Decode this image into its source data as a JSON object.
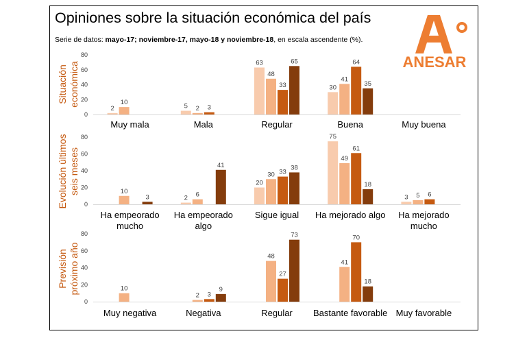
{
  "title": "Opiniones sobre la situación económica del país",
  "subtitle": {
    "prefix": "Serie de datos: ",
    "bold": "mayo-17; noviembre-17, mayo-18 y noviembre-18",
    "suffix": ", en escala ascendente (%)."
  },
  "logo": {
    "text": "ANESAR",
    "letter": "A",
    "color": "#ed7d31"
  },
  "colors": [
    "#f8cbad",
    "#f4b183",
    "#c55a11",
    "#843c0c"
  ],
  "chart_data": [
    {
      "type": "bar",
      "ylabel_lines": [
        "Situación",
        "económica"
      ],
      "ylim": [
        0,
        80
      ],
      "yticks": [
        0,
        20,
        40,
        60,
        80
      ],
      "categories": [
        [
          "Muy mala"
        ],
        [
          "Mala"
        ],
        [
          "Regular"
        ],
        [
          "Buena"
        ],
        [
          "Muy buena"
        ]
      ],
      "values": [
        [
          2,
          10,
          null,
          null
        ],
        [
          5,
          2,
          3,
          null
        ],
        [
          63,
          48,
          33,
          65
        ],
        [
          30,
          41,
          64,
          35
        ],
        [
          null,
          null,
          null,
          null
        ]
      ]
    },
    {
      "type": "bar",
      "ylabel_lines": [
        "Evolución últimos",
        "seis meses"
      ],
      "ylim": [
        0,
        80
      ],
      "yticks": [
        0,
        20,
        40,
        60,
        80
      ],
      "categories": [
        [
          "Ha empeorado",
          "mucho"
        ],
        [
          "Ha empeorado",
          "algo"
        ],
        [
          "Sigue igual"
        ],
        [
          "Ha mejorado algo"
        ],
        [
          "Ha mejorado",
          "mucho"
        ]
      ],
      "values": [
        [
          null,
          10,
          null,
          3
        ],
        [
          2,
          6,
          null,
          41
        ],
        [
          20,
          30,
          33,
          38
        ],
        [
          75,
          49,
          61,
          18
        ],
        [
          3,
          5,
          6,
          null
        ]
      ]
    },
    {
      "type": "bar",
      "ylabel_lines": [
        "Previsión",
        "próximo año"
      ],
      "ylim": [
        0,
        80
      ],
      "yticks": [
        0,
        20,
        40,
        60,
        80
      ],
      "categories": [
        [
          "Muy negativa"
        ],
        [
          "Negativa"
        ],
        [
          "Regular"
        ],
        [
          "Bastante favorable"
        ],
        [
          "Muy favorable"
        ]
      ],
      "values": [
        [
          null,
          10,
          null,
          null
        ],
        [
          null,
          2,
          3,
          9
        ],
        [
          null,
          48,
          27,
          73
        ],
        [
          null,
          41,
          70,
          18
        ],
        [
          null,
          null,
          null,
          null
        ]
      ]
    }
  ]
}
